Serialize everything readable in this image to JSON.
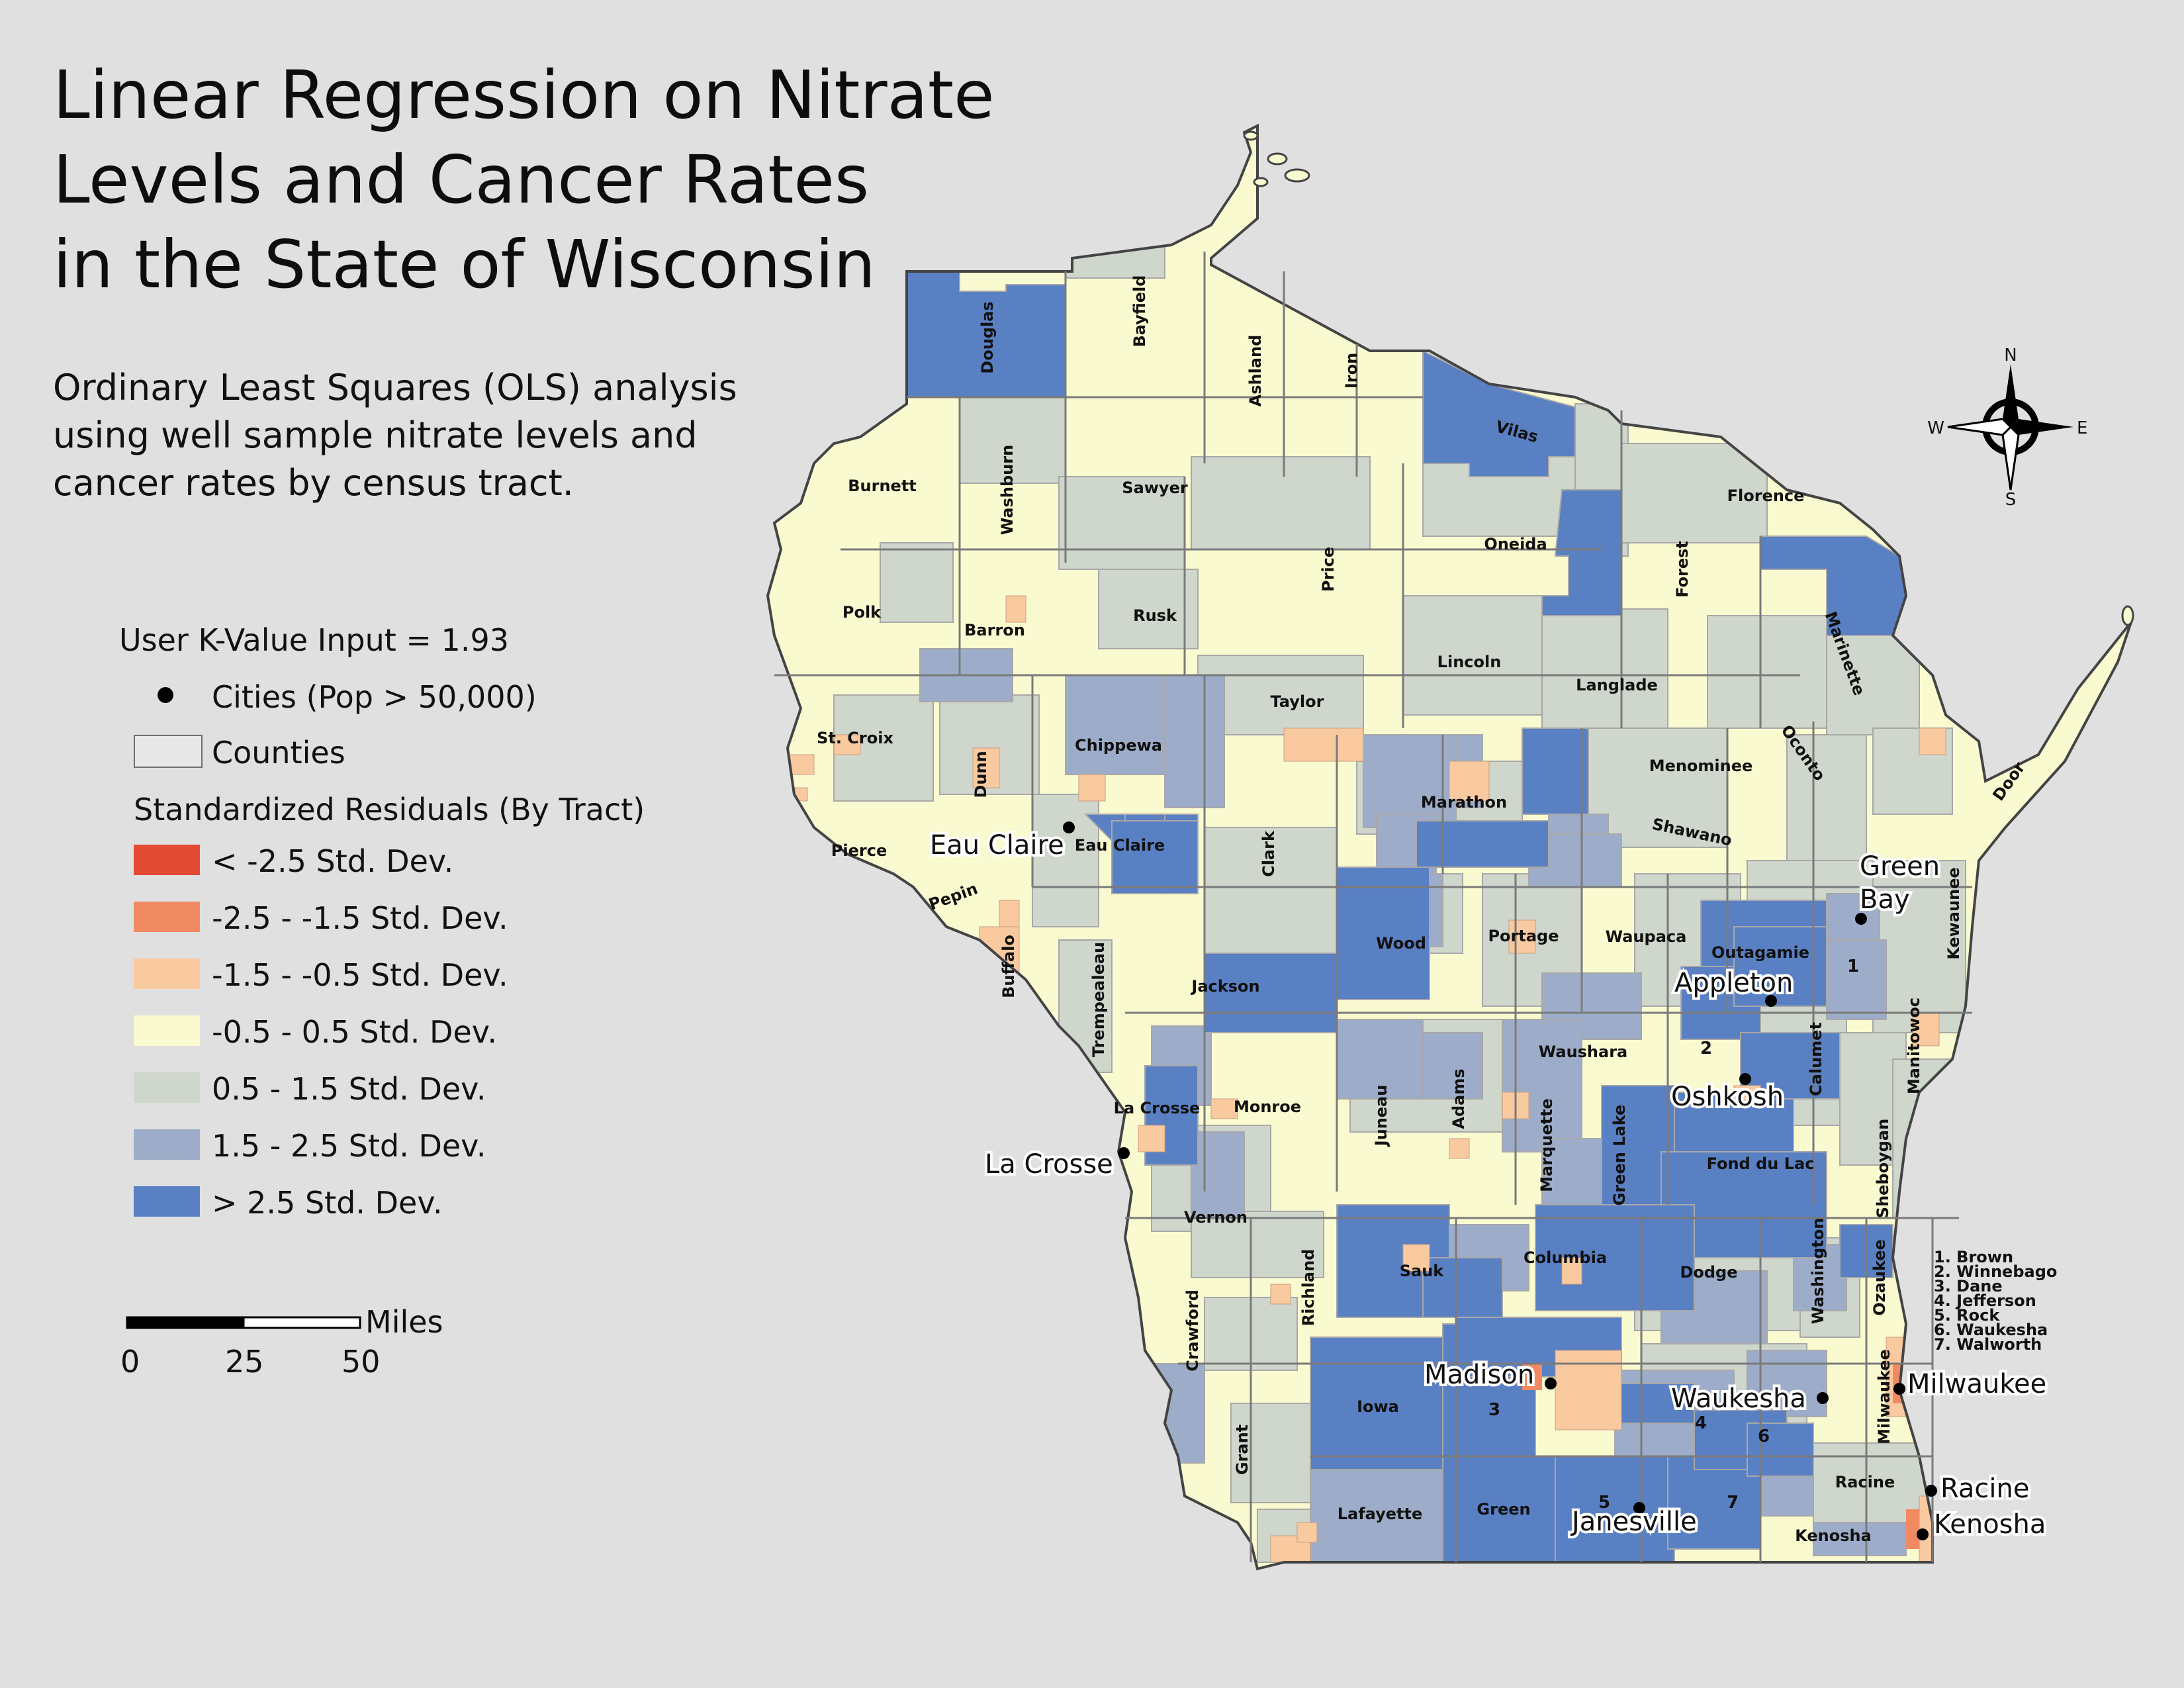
{
  "title_lines": [
    "Linear Regression on Nitrate",
    "Levels and Cancer Rates",
    "in the State of Wisconsin"
  ],
  "subtitle_lines": [
    "Ordinary Least Squares (OLS) analysis",
    "using well sample nitrate levels and",
    "cancer rates by census tract."
  ],
  "legend": {
    "k_value": "User K-Value Input = 1.93",
    "cities_label": "Cities (Pop > 50,000)",
    "counties_label": "Counties",
    "residuals_title": "Standardized Residuals (By Tract)",
    "classes": [
      {
        "label": "< -2.5 Std. Dev.",
        "color": "#e34a33"
      },
      {
        "label": "-2.5 - -1.5 Std. Dev.",
        "color": "#f08a63"
      },
      {
        "label": "-1.5 - -0.5 Std. Dev.",
        "color": "#f9c9a0"
      },
      {
        "label": "-0.5 - 0.5 Std. Dev.",
        "color": "#fafad0"
      },
      {
        "label": "0.5 - 1.5 Std. Dev.",
        "color": "#cfd6cc"
      },
      {
        "label": "1.5 - 2.5 Std. Dev.",
        "color": "#9dadc9"
      },
      {
        "label": "> 2.5 Std. Dev.",
        "color": "#5a80c4"
      }
    ]
  },
  "scale": {
    "unit": "Miles",
    "ticks": [
      "0",
      "25",
      "50"
    ]
  },
  "north_arrow": {
    "n": "N",
    "s": "S",
    "e": "E",
    "w": "W"
  },
  "cities": [
    "Eau Claire",
    "La Crosse",
    "Green Bay",
    "Appleton",
    "Oshkosh",
    "Madison",
    "Waukesha",
    "Milwaukee",
    "Janesville",
    "Racine",
    "Kenosha"
  ],
  "counties": [
    "Douglas",
    "Bayfield",
    "Ashland",
    "Iron",
    "Vilas",
    "Burnett",
    "Washburn",
    "Sawyer",
    "Florence",
    "Oneida",
    "Price",
    "Forest",
    "Polk",
    "Barron",
    "Rusk",
    "Marinette",
    "Lincoln",
    "Langlade",
    "Taylor",
    "St. Croix",
    "Dunn",
    "Chippewa",
    "Menominee",
    "Oconto",
    "Marathon",
    "Door",
    "Shawano",
    "Pierce",
    "Eau Claire",
    "Pepin",
    "Clark",
    "Kewaunee",
    "Wood",
    "Portage",
    "Waupaca",
    "Outagamie",
    "Buffalo",
    "Trempealeau",
    "Jackson",
    "Manitowoc",
    "Waushara",
    "Calumet",
    "Juneau",
    "Adams",
    "Monroe",
    "La Crosse",
    "Marquette",
    "Green Lake",
    "Fond du Lac",
    "Sheboygan",
    "Vernon",
    "Sauk",
    "Columbia",
    "Dodge",
    "Washington",
    "Ozaukee",
    "Richland",
    "Crawford",
    "Iowa",
    "Grant",
    "Lafayette",
    "Green",
    "Racine",
    "Kenosha",
    "Milwaukee"
  ],
  "numbered_counties": [
    "1. Brown",
    "2. Winnebago",
    "3. Dane",
    "4. Jefferson",
    "5. Rock",
    "6. Waukesha",
    "7. Walworth"
  ],
  "map_numbers": [
    "1",
    "2",
    "3",
    "4",
    "5",
    "6",
    "7"
  ]
}
